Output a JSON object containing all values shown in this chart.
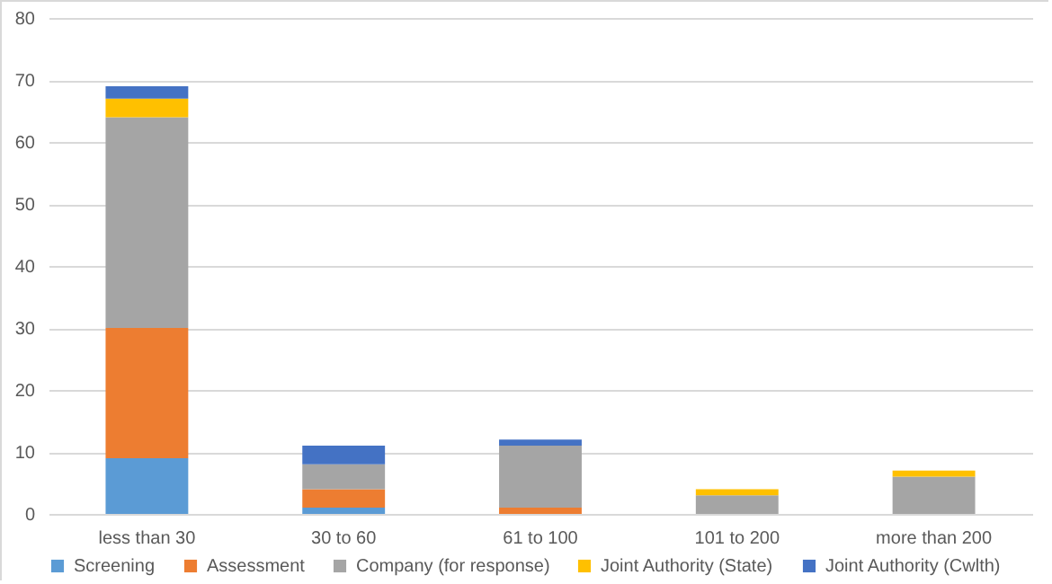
{
  "chart_data": {
    "type": "bar",
    "stacked": true,
    "categories": [
      "less than 30",
      "30 to 60",
      "61 to 100",
      "101 to 200",
      "more than 200"
    ],
    "series": [
      {
        "name": "Screening",
        "color": "#5b9bd5",
        "values": [
          9,
          1,
          0,
          0,
          0
        ]
      },
      {
        "name": "Assessment",
        "color": "#ed7d31",
        "values": [
          21,
          3,
          1,
          0,
          0
        ]
      },
      {
        "name": "Company (for response)",
        "color": "#a5a5a5",
        "values": [
          34,
          4,
          10,
          3,
          6
        ]
      },
      {
        "name": "Joint Authority (State)",
        "color": "#ffc000",
        "values": [
          3,
          0,
          0,
          1,
          1
        ]
      },
      {
        "name": "Joint Authority (Cwlth)",
        "color": "#4472c4",
        "values": [
          2,
          3,
          1,
          0,
          0
        ]
      }
    ],
    "ylim": [
      0,
      80
    ],
    "yticks": [
      0,
      10,
      20,
      30,
      40,
      50,
      60,
      70,
      80
    ],
    "grid": "y",
    "legend": "bottom"
  }
}
